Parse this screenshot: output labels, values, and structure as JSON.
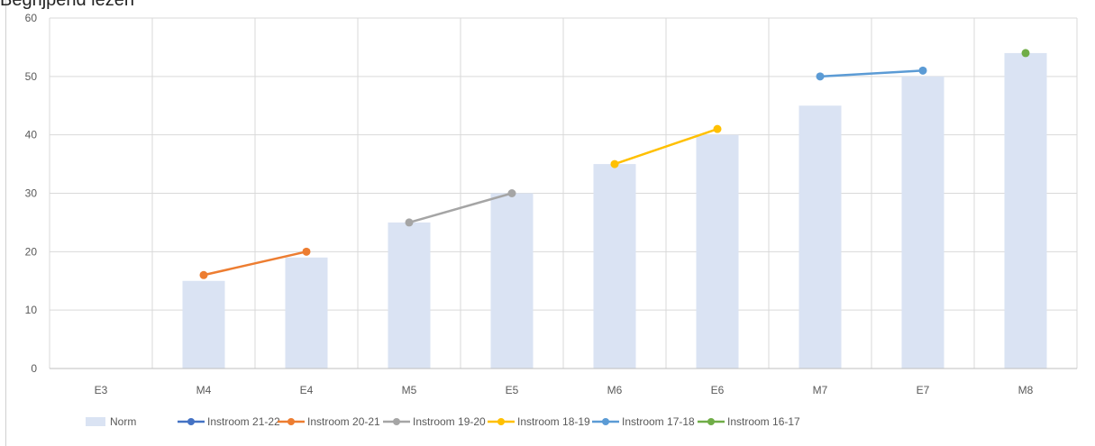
{
  "partial_title": "Begrijpend lezen",
  "chart_data": {
    "type": "bar+line",
    "categories": [
      "E3",
      "M4",
      "E4",
      "M5",
      "E5",
      "M6",
      "E6",
      "M7",
      "E7",
      "M8"
    ],
    "ylim": [
      0,
      60
    ],
    "yticks": [
      0,
      10,
      20,
      30,
      40,
      50,
      60
    ],
    "grid": true,
    "legend_position": "bottom",
    "bar_series": {
      "name": "Norm",
      "color": "#dae3f3",
      "values": [
        null,
        15,
        19,
        25,
        30,
        35,
        40,
        45,
        50,
        54
      ]
    },
    "line_series": [
      {
        "name": "Instroom 21-22",
        "color": "#4472c4",
        "values": [
          null,
          null,
          null,
          null,
          null,
          null,
          null,
          null,
          null,
          null
        ]
      },
      {
        "name": "Instroom 20-21",
        "color": "#ed7d31",
        "values": [
          null,
          16,
          20,
          null,
          null,
          null,
          null,
          null,
          null,
          null
        ]
      },
      {
        "name": "Instroom 19-20",
        "color": "#a5a5a5",
        "values": [
          null,
          null,
          null,
          25,
          30,
          null,
          null,
          null,
          null,
          null
        ]
      },
      {
        "name": "Instroom 18-19",
        "color": "#ffc000",
        "values": [
          null,
          null,
          null,
          null,
          null,
          35,
          41,
          null,
          null,
          null
        ]
      },
      {
        "name": "Instroom 17-18",
        "color": "#5b9bd5",
        "values": [
          null,
          null,
          null,
          null,
          null,
          null,
          null,
          50,
          51,
          null
        ]
      },
      {
        "name": "Instroom 16-17",
        "color": "#70ad47",
        "values": [
          null,
          null,
          null,
          null,
          null,
          null,
          null,
          null,
          null,
          54
        ]
      }
    ]
  }
}
